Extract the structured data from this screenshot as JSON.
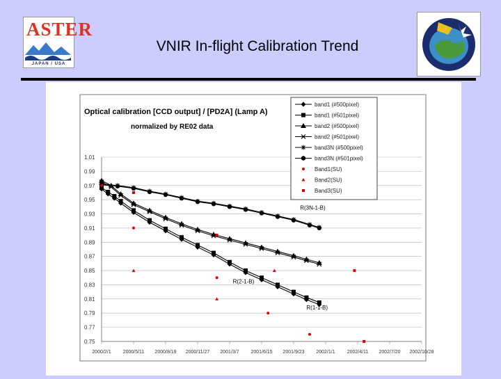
{
  "header": {
    "title": "VNIR In-flight Calibration Trend",
    "left_logo": {
      "word": "ASTER",
      "subtitle": "JAPAN / USA"
    },
    "right_logo": {
      "name": "Terra mission patch"
    }
  },
  "chart_data": {
    "type": "line",
    "title": "Optical calibration [CCD output] / [PD2A] (Lamp A)",
    "subtitle": "normalized by RE02 data",
    "xlabel": "",
    "ylabel": "",
    "x_ticks": [
      "2000/2/1",
      "2000/5/11",
      "2000/8/19",
      "2000/11/27",
      "2001/3/7",
      "2001/6/15",
      "2001/9/23",
      "2002/1/1",
      "2002/4/11",
      "2002/7/20",
      "2002/10/28"
    ],
    "y_ticks": [
      "1.01",
      "0.99",
      "0.97",
      "0.95",
      "0.93",
      "0.91",
      "0.89",
      "0.87",
      "0.85",
      "0.83",
      "0.81",
      "0.79",
      "0.77",
      "0.75"
    ],
    "ylim": [
      0.75,
      1.01
    ],
    "xlim_days": [
      0,
      1000
    ],
    "grid": true,
    "legend_position": "top-right",
    "series": [
      {
        "name": "band1 (#500pixel)",
        "marker": "diamond",
        "points": [
          [
            0,
            0.965
          ],
          [
            20,
            0.958
          ],
          [
            40,
            0.952
          ],
          [
            60,
            0.945
          ],
          [
            100,
            0.932
          ],
          [
            150,
            0.918
          ],
          [
            200,
            0.906
          ],
          [
            250,
            0.894
          ],
          [
            300,
            0.883
          ],
          [
            350,
            0.872
          ],
          [
            400,
            0.859
          ],
          [
            450,
            0.847
          ],
          [
            500,
            0.837
          ],
          [
            550,
            0.827
          ],
          [
            600,
            0.817
          ],
          [
            640,
            0.809
          ],
          [
            680,
            0.802
          ]
        ]
      },
      {
        "name": "band1 (#501pixel)",
        "marker": "square",
        "points": [
          [
            0,
            0.967
          ],
          [
            20,
            0.961
          ],
          [
            40,
            0.955
          ],
          [
            60,
            0.948
          ],
          [
            100,
            0.935
          ],
          [
            150,
            0.921
          ],
          [
            200,
            0.909
          ],
          [
            250,
            0.897
          ],
          [
            300,
            0.886
          ],
          [
            350,
            0.875
          ],
          [
            400,
            0.862
          ],
          [
            450,
            0.85
          ],
          [
            500,
            0.84
          ],
          [
            550,
            0.83
          ],
          [
            600,
            0.82
          ],
          [
            640,
            0.812
          ],
          [
            680,
            0.805
          ]
        ]
      },
      {
        "name": "band2 (#500pixel)",
        "marker": "triangle",
        "points": [
          [
            0,
            0.977
          ],
          [
            30,
            0.97
          ],
          [
            60,
            0.958
          ],
          [
            100,
            0.945
          ],
          [
            150,
            0.935
          ],
          [
            200,
            0.925
          ],
          [
            250,
            0.916
          ],
          [
            300,
            0.908
          ],
          [
            350,
            0.901
          ],
          [
            400,
            0.895
          ],
          [
            450,
            0.889
          ],
          [
            500,
            0.883
          ],
          [
            550,
            0.877
          ],
          [
            600,
            0.871
          ],
          [
            640,
            0.866
          ],
          [
            680,
            0.861
          ]
        ]
      },
      {
        "name": "band2 (#501pixel)",
        "marker": "x",
        "points": [
          [
            0,
            0.975
          ],
          [
            30,
            0.968
          ],
          [
            60,
            0.956
          ],
          [
            100,
            0.943
          ],
          [
            150,
            0.933
          ],
          [
            200,
            0.923
          ],
          [
            250,
            0.914
          ],
          [
            300,
            0.906
          ],
          [
            350,
            0.899
          ],
          [
            400,
            0.893
          ],
          [
            450,
            0.887
          ],
          [
            500,
            0.881
          ],
          [
            550,
            0.875
          ],
          [
            600,
            0.869
          ],
          [
            640,
            0.864
          ],
          [
            680,
            0.859
          ]
        ]
      },
      {
        "name": "band3N (#500pixel)",
        "marker": "star",
        "points": [
          [
            0,
            0.972
          ],
          [
            50,
            0.97
          ],
          [
            100,
            0.967
          ],
          [
            150,
            0.962
          ],
          [
            200,
            0.958
          ],
          [
            250,
            0.953
          ],
          [
            300,
            0.948
          ],
          [
            350,
            0.945
          ],
          [
            400,
            0.941
          ],
          [
            450,
            0.937
          ],
          [
            500,
            0.932
          ],
          [
            550,
            0.927
          ],
          [
            600,
            0.922
          ],
          [
            650,
            0.915
          ],
          [
            680,
            0.911
          ]
        ]
      },
      {
        "name": "band3N (#501pixel)",
        "marker": "circle",
        "points": [
          [
            0,
            0.971
          ],
          [
            50,
            0.969
          ],
          [
            100,
            0.966
          ],
          [
            150,
            0.961
          ],
          [
            200,
            0.957
          ],
          [
            250,
            0.952
          ],
          [
            300,
            0.947
          ],
          [
            350,
            0.944
          ],
          [
            400,
            0.94
          ],
          [
            450,
            0.936
          ],
          [
            500,
            0.931
          ],
          [
            550,
            0.926
          ],
          [
            600,
            0.921
          ],
          [
            650,
            0.914
          ],
          [
            680,
            0.91
          ]
        ]
      },
      {
        "name": "Band1(SU)",
        "marker": "dot",
        "color": "#e00000",
        "points": [
          [
            0,
            0.97
          ],
          [
            100,
            0.91
          ],
          [
            360,
            0.84
          ],
          [
            520,
            0.79
          ],
          [
            650,
            0.76
          ]
        ]
      },
      {
        "name": "Band2(SU)",
        "marker": "small-triangle",
        "color": "#e00000",
        "points": [
          [
            100,
            0.85
          ],
          [
            360,
            0.81
          ],
          [
            540,
            0.85
          ]
        ]
      },
      {
        "name": "Band3(SU)",
        "marker": "small-square",
        "color": "#e00000",
        "points": [
          [
            100,
            0.96
          ],
          [
            360,
            0.9
          ],
          [
            790,
            0.85
          ],
          [
            820,
            0.75
          ]
        ]
      }
    ],
    "annotations": [
      {
        "text": "R(3N-1-B)",
        "x": 620,
        "y": 0.936
      },
      {
        "text": "R(2-1-B)",
        "x": 410,
        "y": 0.832
      },
      {
        "text": "R(1-1-B)",
        "x": 640,
        "y": 0.795
      }
    ]
  }
}
